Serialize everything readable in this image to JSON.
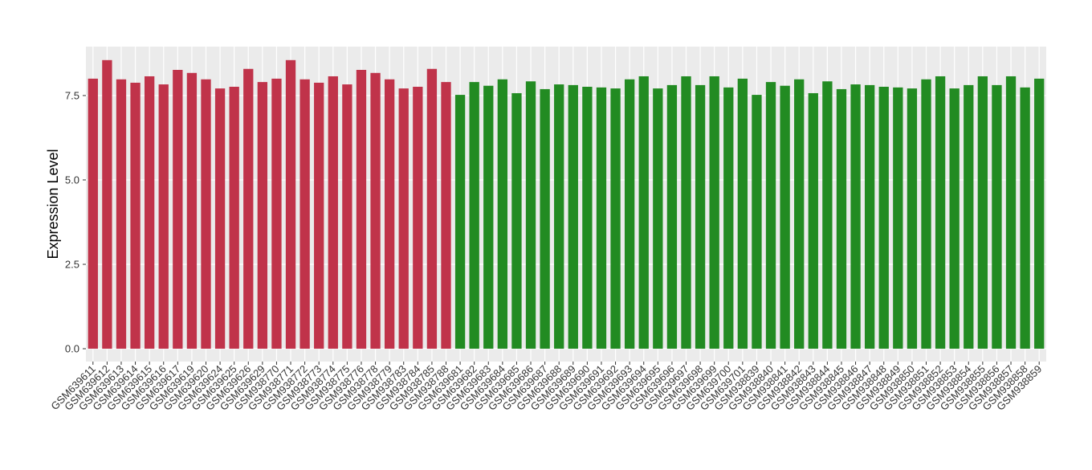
{
  "chart_data": {
    "type": "bar",
    "y_label": "Expression Level",
    "categories": [
      "GSM639611",
      "GSM639612",
      "GSM639613",
      "GSM639614",
      "GSM639615",
      "GSM639616",
      "GSM639617",
      "GSM639619",
      "GSM639620",
      "GSM639624",
      "GSM639625",
      "GSM639626",
      "GSM639629",
      "GSM938770",
      "GSM938771",
      "GSM938772",
      "GSM938773",
      "GSM938774",
      "GSM938775",
      "GSM938776",
      "GSM938778",
      "GSM938779",
      "GSM938783",
      "GSM938784",
      "GSM938785",
      "GSM938788",
      "GSM639681",
      "GSM639682",
      "GSM639683",
      "GSM639684",
      "GSM639685",
      "GSM639686",
      "GSM639687",
      "GSM639688",
      "GSM639689",
      "GSM639690",
      "GSM639691",
      "GSM639692",
      "GSM639693",
      "GSM639694",
      "GSM639695",
      "GSM639696",
      "GSM639697",
      "GSM639698",
      "GSM639699",
      "GSM639700",
      "GSM639701",
      "GSM938839",
      "GSM938840",
      "GSM938841",
      "GSM938842",
      "GSM938843",
      "GSM938844",
      "GSM938845",
      "GSM938846",
      "GSM938847",
      "GSM938848",
      "GSM938849",
      "GSM938850",
      "GSM938851",
      "GSM938852",
      "GSM938853",
      "GSM938854",
      "GSM938855",
      "GSM938856",
      "GSM938857",
      "GSM938858",
      "GSM938859"
    ],
    "values": [
      8.0,
      8.55,
      7.98,
      7.88,
      8.07,
      7.83,
      8.26,
      8.17,
      7.98,
      7.71,
      7.76,
      8.29,
      7.9,
      8.0,
      8.55,
      7.98,
      7.88,
      8.07,
      7.83,
      8.26,
      8.17,
      7.98,
      7.71,
      7.76,
      8.29,
      7.9,
      7.52,
      7.9,
      7.79,
      7.98,
      7.57,
      7.92,
      7.69,
      7.83,
      7.81,
      7.76,
      7.74,
      7.71,
      7.98,
      8.07,
      7.71,
      7.81,
      8.07,
      7.81,
      8.07,
      7.74,
      8.0,
      7.52,
      7.9,
      7.79,
      7.98,
      7.57,
      7.92,
      7.69,
      7.83,
      7.81,
      7.76,
      7.74,
      7.71,
      7.98,
      8.07,
      7.71,
      7.81,
      8.07,
      7.81,
      8.07,
      7.74,
      8.0
    ],
    "colors": [
      "#c0334a",
      "#c0334a",
      "#c0334a",
      "#c0334a",
      "#c0334a",
      "#c0334a",
      "#c0334a",
      "#c0334a",
      "#c0334a",
      "#c0334a",
      "#c0334a",
      "#c0334a",
      "#c0334a",
      "#c0334a",
      "#c0334a",
      "#c0334a",
      "#c0334a",
      "#c0334a",
      "#c0334a",
      "#c0334a",
      "#c0334a",
      "#c0334a",
      "#c0334a",
      "#c0334a",
      "#c0334a",
      "#c0334a",
      "#228b22",
      "#228b22",
      "#228b22",
      "#228b22",
      "#228b22",
      "#228b22",
      "#228b22",
      "#228b22",
      "#228b22",
      "#228b22",
      "#228b22",
      "#228b22",
      "#228b22",
      "#228b22",
      "#228b22",
      "#228b22",
      "#228b22",
      "#228b22",
      "#228b22",
      "#228b22",
      "#228b22",
      "#228b22",
      "#228b22",
      "#228b22",
      "#228b22",
      "#228b22",
      "#228b22",
      "#228b22",
      "#228b22",
      "#228b22",
      "#228b22",
      "#228b22",
      "#228b22",
      "#228b22",
      "#228b22",
      "#228b22",
      "#228b22",
      "#228b22",
      "#228b22",
      "#228b22",
      "#228b22",
      "#228b22"
    ],
    "ylim": [
      -0.38,
      8.95
    ],
    "yticks": [
      {
        "value": 0,
        "label": "0.0"
      },
      2.5,
      {
        "value": 5,
        "label": "5.0"
      },
      7.5
    ],
    "grid": true
  }
}
